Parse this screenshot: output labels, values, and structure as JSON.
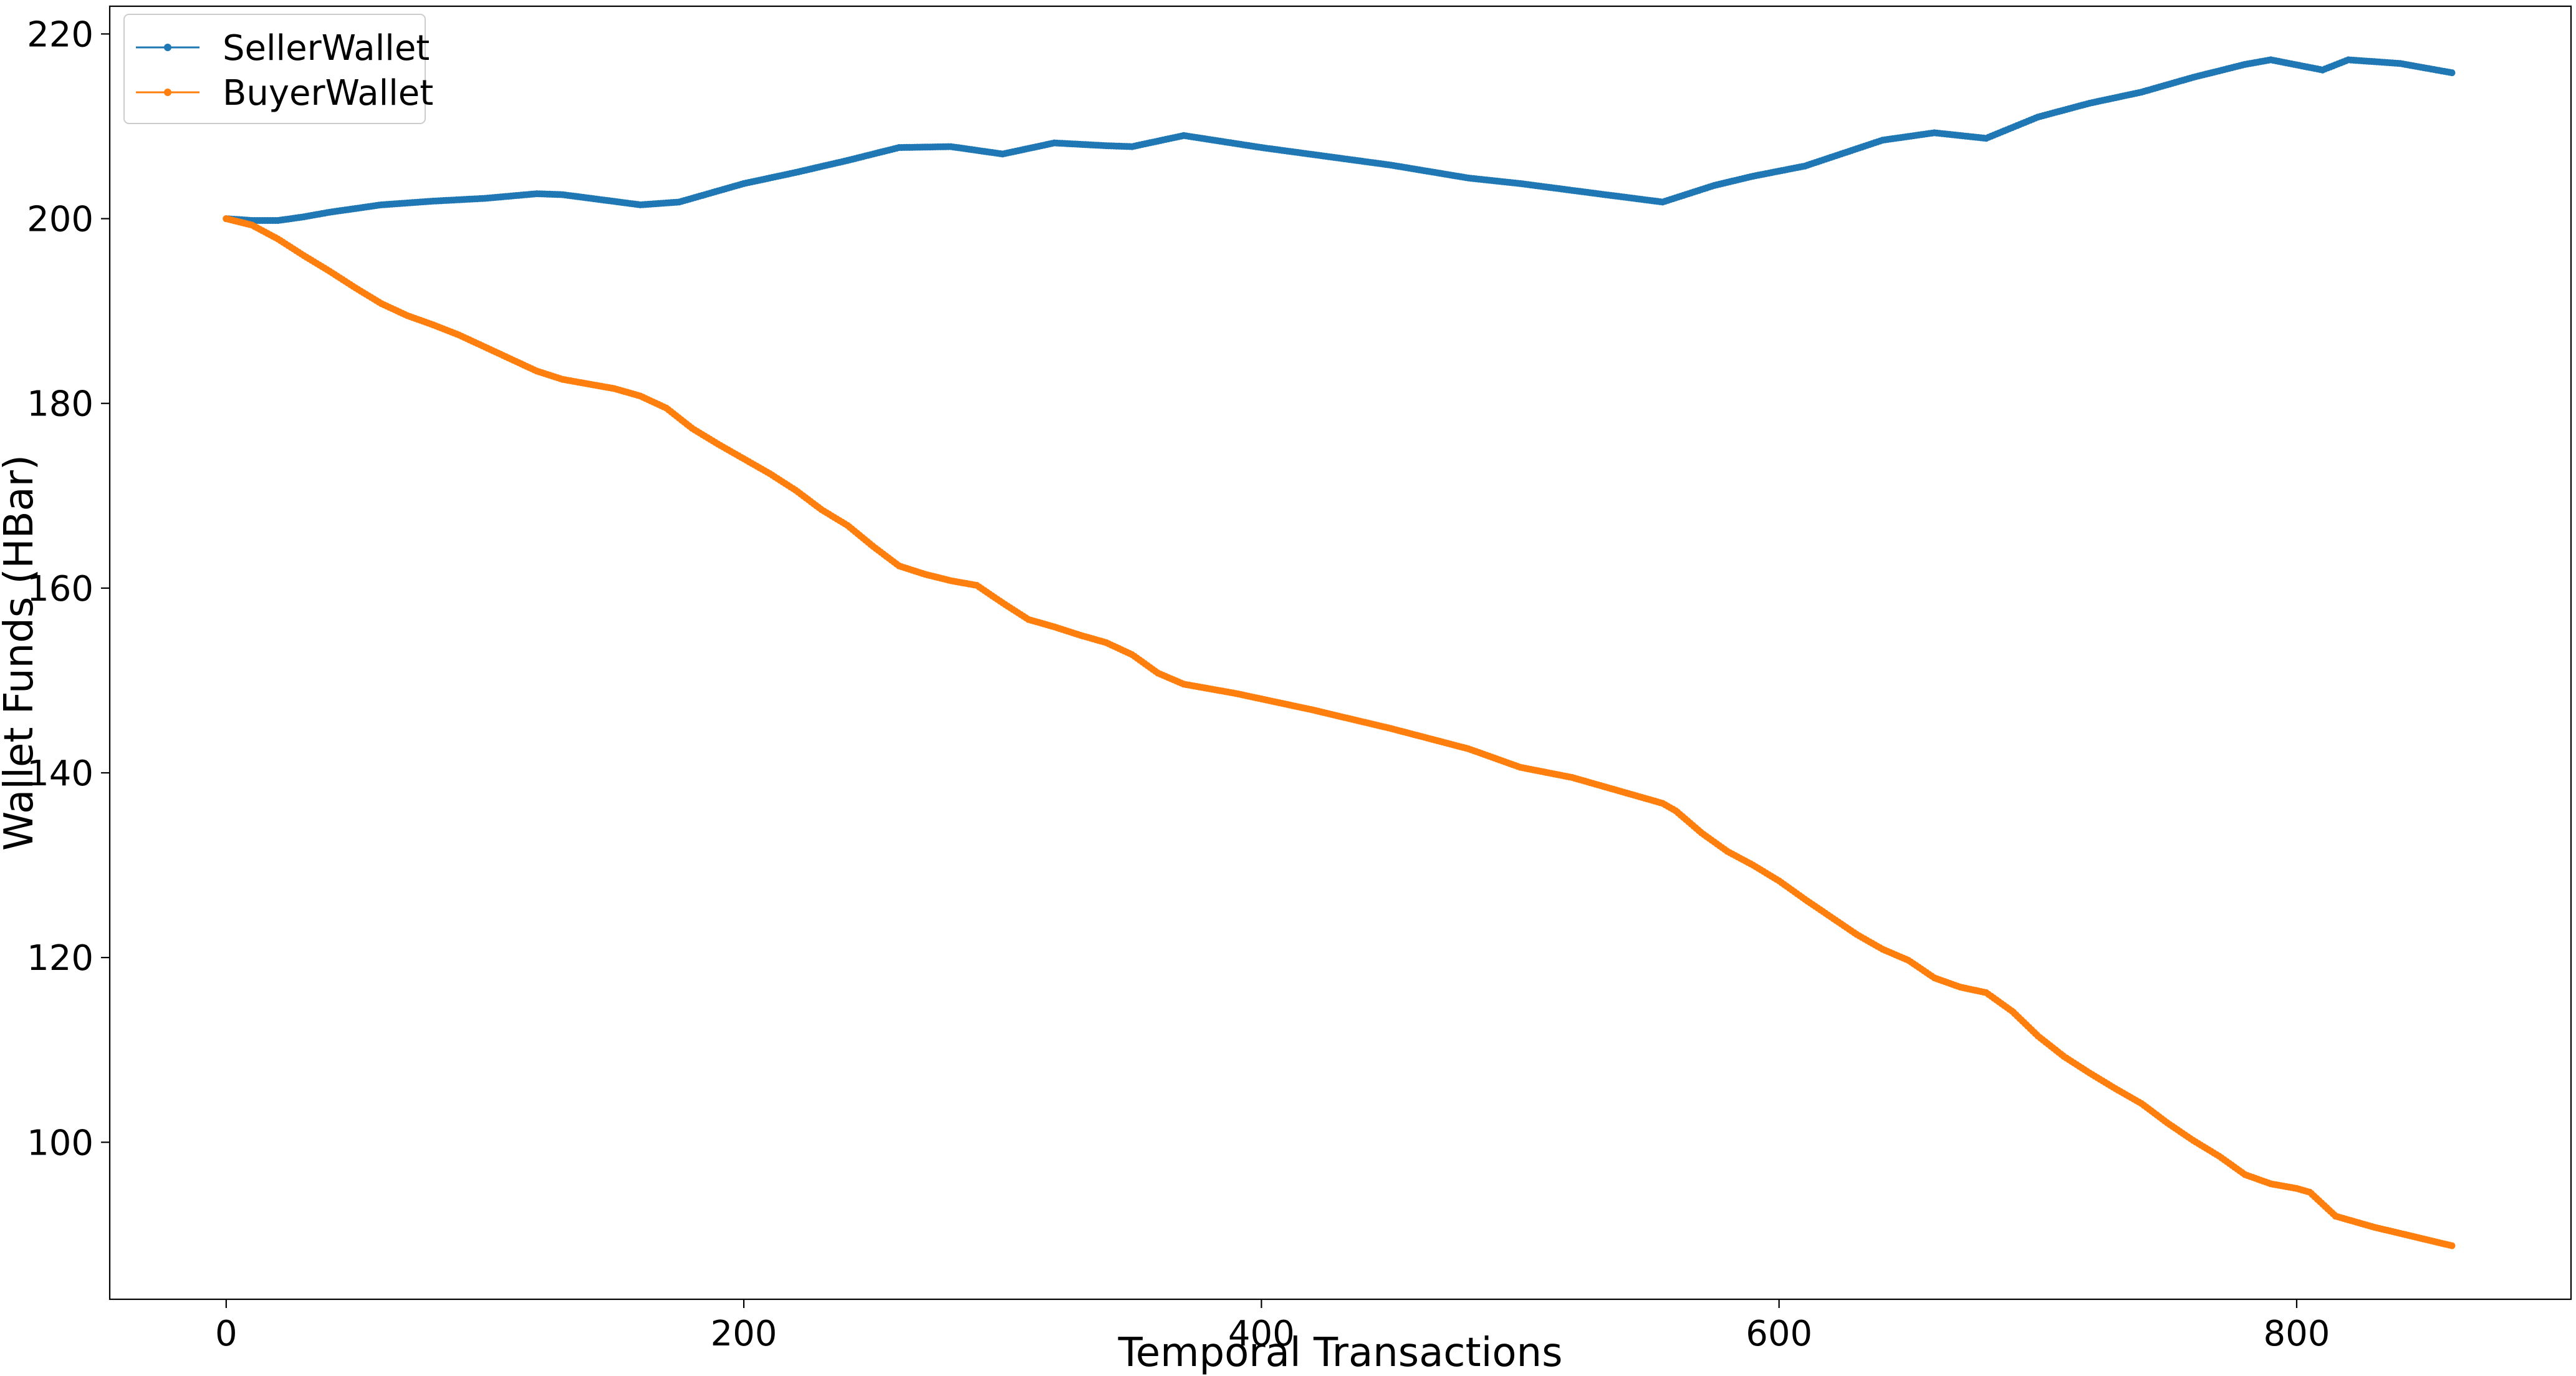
{
  "chart_data": {
    "type": "line",
    "title": "",
    "xlabel": "Temporal Transactions",
    "ylabel": "Wallet Funds (HBar)",
    "xlim": [
      -45,
      906
    ],
    "ylim": [
      83,
      223
    ],
    "xticks": [
      0,
      200,
      400,
      600,
      800
    ],
    "yticks": [
      100,
      120,
      140,
      160,
      180,
      200,
      220
    ],
    "grid": false,
    "legend_position": "upper-left",
    "step": true,
    "series": [
      {
        "name": "SellerWallet",
        "color": "#1f77b4",
        "marker": "circle",
        "points": [
          [
            0,
            200.0
          ],
          [
            10,
            199.8
          ],
          [
            20,
            199.8
          ],
          [
            30,
            200.2
          ],
          [
            40,
            200.7
          ],
          [
            60,
            201.5
          ],
          [
            80,
            201.9
          ],
          [
            100,
            202.2
          ],
          [
            120,
            202.7
          ],
          [
            130,
            202.6
          ],
          [
            160,
            201.5
          ],
          [
            175,
            201.8
          ],
          [
            200,
            203.8
          ],
          [
            220,
            205.0
          ],
          [
            240,
            206.3
          ],
          [
            260,
            207.7
          ],
          [
            280,
            207.8
          ],
          [
            300,
            207.0
          ],
          [
            310,
            207.6
          ],
          [
            320,
            208.2
          ],
          [
            340,
            207.9
          ],
          [
            350,
            207.8
          ],
          [
            370,
            209.0
          ],
          [
            400,
            207.7
          ],
          [
            450,
            205.8
          ],
          [
            480,
            204.4
          ],
          [
            500,
            203.8
          ],
          [
            530,
            202.7
          ],
          [
            555,
            201.8
          ],
          [
            575,
            203.6
          ],
          [
            590,
            204.6
          ],
          [
            610,
            205.7
          ],
          [
            640,
            208.5
          ],
          [
            660,
            209.3
          ],
          [
            680,
            208.7
          ],
          [
            700,
            211.0
          ],
          [
            720,
            212.5
          ],
          [
            740,
            213.7
          ],
          [
            760,
            215.3
          ],
          [
            780,
            216.7
          ],
          [
            790,
            217.2
          ],
          [
            810,
            216.1
          ],
          [
            820,
            217.2
          ],
          [
            840,
            216.8
          ],
          [
            860,
            215.8
          ]
        ]
      },
      {
        "name": "BuyerWallet",
        "color": "#ff7f0e",
        "marker": "circle",
        "points": [
          [
            0,
            200.0
          ],
          [
            10,
            199.3
          ],
          [
            20,
            197.8
          ],
          [
            30,
            196.0
          ],
          [
            40,
            194.3
          ],
          [
            50,
            192.5
          ],
          [
            60,
            190.8
          ],
          [
            70,
            189.5
          ],
          [
            80,
            188.5
          ],
          [
            90,
            187.4
          ],
          [
            100,
            186.1
          ],
          [
            110,
            184.8
          ],
          [
            120,
            183.5
          ],
          [
            130,
            182.6
          ],
          [
            150,
            181.6
          ],
          [
            160,
            180.8
          ],
          [
            170,
            179.5
          ],
          [
            180,
            177.3
          ],
          [
            190,
            175.6
          ],
          [
            200,
            174.0
          ],
          [
            210,
            172.4
          ],
          [
            220,
            170.6
          ],
          [
            230,
            168.5
          ],
          [
            240,
            166.8
          ],
          [
            250,
            164.5
          ],
          [
            260,
            162.4
          ],
          [
            270,
            161.5
          ],
          [
            280,
            160.8
          ],
          [
            290,
            160.3
          ],
          [
            300,
            158.4
          ],
          [
            310,
            156.6
          ],
          [
            320,
            155.8
          ],
          [
            330,
            154.9
          ],
          [
            340,
            154.1
          ],
          [
            350,
            152.8
          ],
          [
            360,
            150.8
          ],
          [
            370,
            149.6
          ],
          [
            390,
            148.6
          ],
          [
            420,
            146.8
          ],
          [
            450,
            144.8
          ],
          [
            480,
            142.6
          ],
          [
            500,
            140.6
          ],
          [
            520,
            139.5
          ],
          [
            540,
            137.9
          ],
          [
            555,
            136.7
          ],
          [
            560,
            135.9
          ],
          [
            570,
            133.5
          ],
          [
            580,
            131.5
          ],
          [
            590,
            130.0
          ],
          [
            600,
            128.3
          ],
          [
            610,
            126.3
          ],
          [
            620,
            124.4
          ],
          [
            630,
            122.5
          ],
          [
            640,
            120.9
          ],
          [
            650,
            119.7
          ],
          [
            660,
            117.8
          ],
          [
            670,
            116.8
          ],
          [
            680,
            116.2
          ],
          [
            690,
            114.2
          ],
          [
            700,
            111.5
          ],
          [
            710,
            109.3
          ],
          [
            720,
            107.5
          ],
          [
            730,
            105.8
          ],
          [
            740,
            104.2
          ],
          [
            750,
            102.1
          ],
          [
            760,
            100.2
          ],
          [
            770,
            98.5
          ],
          [
            780,
            96.5
          ],
          [
            790,
            95.5
          ],
          [
            800,
            95.0
          ],
          [
            805,
            94.6
          ],
          [
            815,
            92.0
          ],
          [
            830,
            90.8
          ],
          [
            845,
            89.8
          ],
          [
            860,
            88.8
          ]
        ]
      }
    ]
  }
}
